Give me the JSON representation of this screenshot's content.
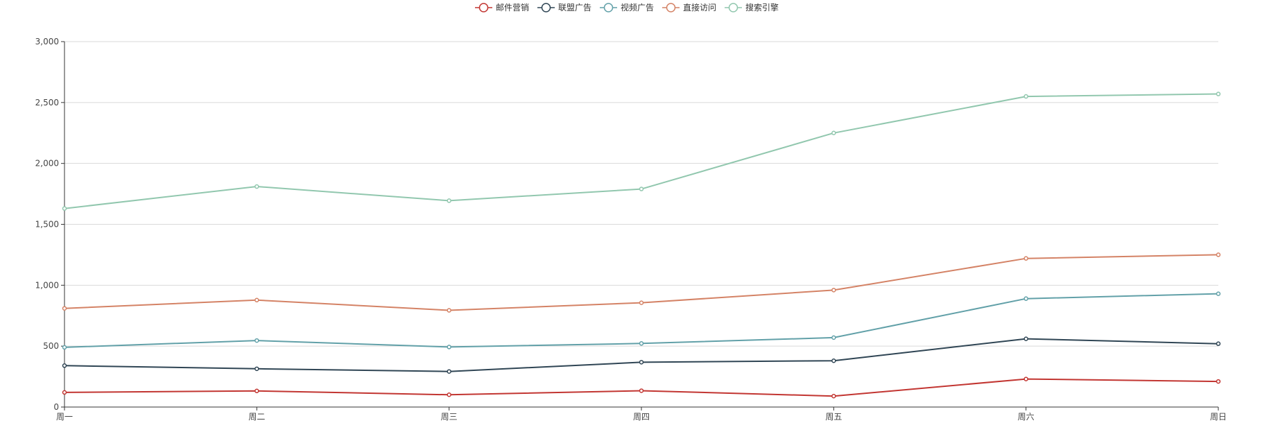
{
  "chart_data": {
    "type": "line",
    "title": "",
    "xlabel": "",
    "ylabel": "",
    "categories": [
      "周一",
      "周二",
      "周三",
      "周四",
      "周五",
      "周六",
      "周日"
    ],
    "ylim": [
      0,
      3000
    ],
    "yticks": [
      "0",
      "500",
      "1,000",
      "1,500",
      "2,000",
      "2,500",
      "3,000"
    ],
    "grid": true,
    "legend_position": "top-center",
    "series": [
      {
        "name": "邮件营销",
        "color": "#c23531",
        "values": [
          120,
          132,
          101,
          134,
          90,
          230,
          210
        ]
      },
      {
        "name": "联盟广告",
        "color": "#2f4554",
        "values": [
          340,
          314,
          292,
          368,
          380,
          560,
          520
        ]
      },
      {
        "name": "视频广告",
        "color": "#61a0a8",
        "values": [
          490,
          546,
          493,
          522,
          570,
          890,
          930
        ]
      },
      {
        "name": "直接访问",
        "color": "#d48265",
        "values": [
          810,
          878,
          794,
          856,
          960,
          1220,
          1250
        ]
      },
      {
        "name": "搜索引擎",
        "color": "#91c7ae",
        "values": [
          1630,
          1810,
          1694,
          1790,
          2250,
          2550,
          2570
        ]
      }
    ]
  }
}
